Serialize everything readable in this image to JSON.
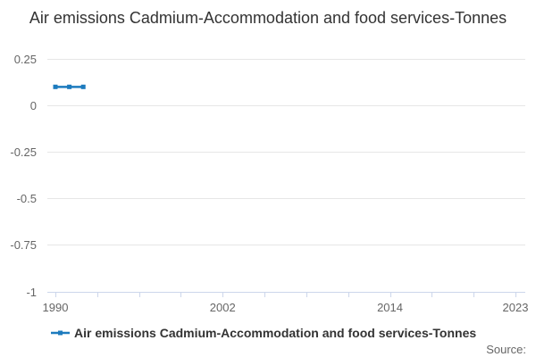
{
  "chart": {
    "title": "Air emissions Cadmium-Accommodation and food services-Tonnes",
    "legend_label": "Air emissions Cadmium-Accommodation and food services-Tonnes",
    "source_label": "Source:"
  },
  "chart_data": {
    "type": "line",
    "title": "Air emissions Cadmium-Accommodation and food services-Tonnes",
    "series": [
      {
        "name": "Air emissions Cadmium-Accommodation and food services-Tonnes",
        "x": [
          1990,
          1991,
          1992
        ],
        "values": [
          0.1,
          0.1,
          0.1
        ],
        "color": "#1d7bbe",
        "marker": "square"
      }
    ],
    "xlabel": "",
    "ylabel": "",
    "xlim": [
      1990,
      2023
    ],
    "ylim": [
      -1,
      0.25
    ],
    "yticks": [
      0.25,
      0,
      -0.25,
      -0.5,
      -0.75,
      -1
    ],
    "ytick_labels": [
      "0.25",
      "0",
      "-0.25",
      "-0.5",
      "-0.75",
      "-1"
    ],
    "xtick_step": 3,
    "xtick_labels": [
      {
        "year": 1990,
        "label": "1990"
      },
      {
        "year": 2002,
        "label": "2002"
      },
      {
        "year": 2014,
        "label": "2014"
      },
      {
        "year": 2023,
        "label": "2023"
      }
    ],
    "grid": true,
    "legend_position": "bottom-left",
    "colors": {
      "gridline": "#e6e6e6",
      "axis_line": "#ccd6eb",
      "tick_label": "#666666",
      "title": "#333333",
      "legend_text": "#333333"
    }
  }
}
